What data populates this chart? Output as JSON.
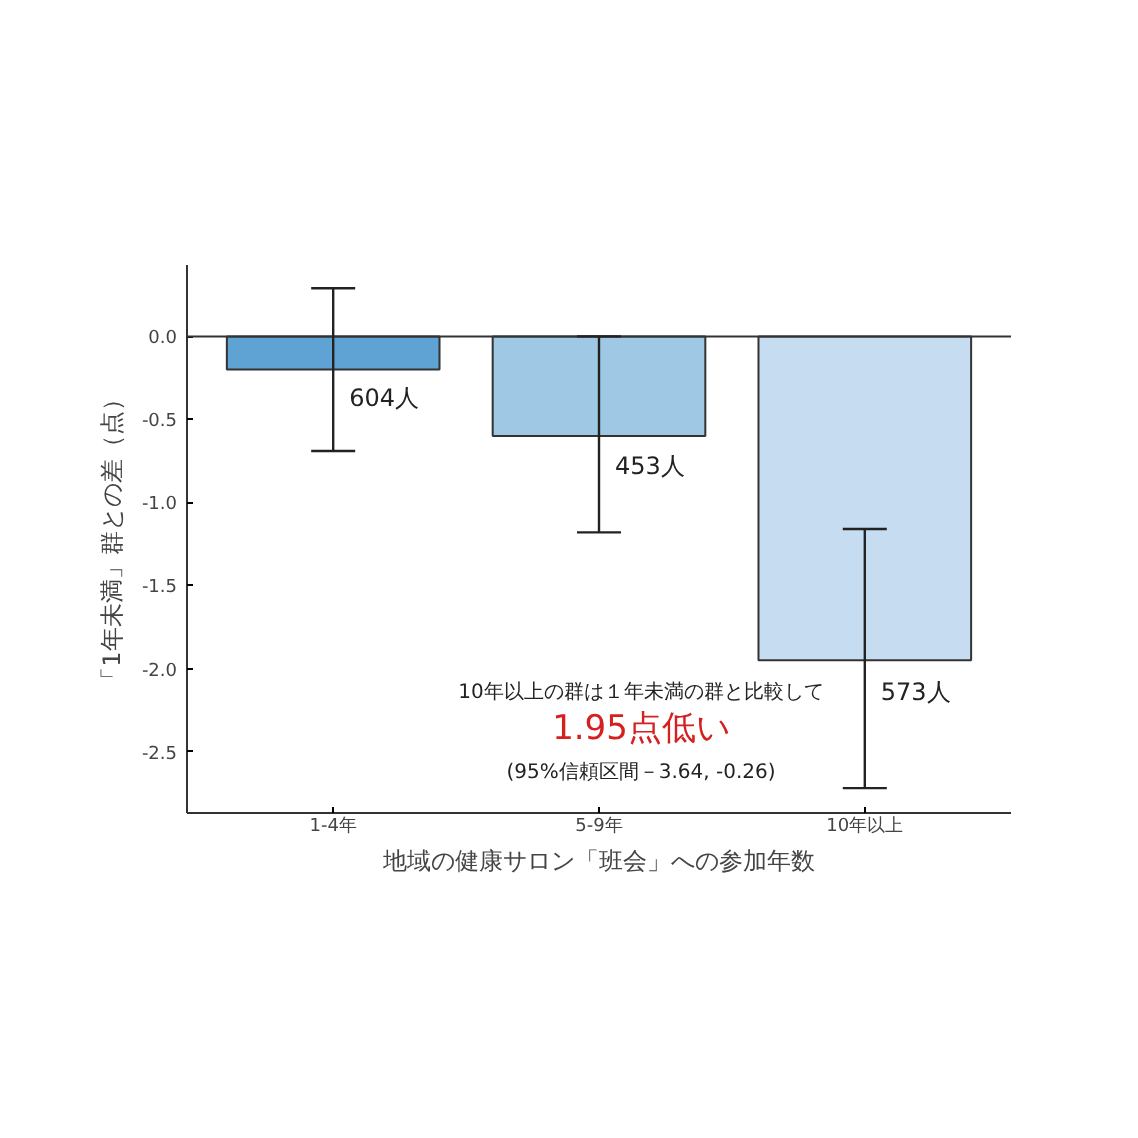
{
  "chart_data": {
    "type": "bar",
    "xlabel": "地域の健康サロン「班会」への参加年数",
    "ylabel": "「1年未満」群との差（点）",
    "categories": [
      "1-4年",
      "5-9年",
      "10年以上"
    ],
    "values": [
      -0.2,
      -0.6,
      -1.95
    ],
    "colors": [
      "#5fa2d4",
      "#9fc8e4",
      "#c6dcf0"
    ],
    "errors": [
      [
        -0.69,
        0.29
      ],
      [
        -1.18,
        0.0
      ],
      [
        -2.72,
        -1.16
      ]
    ],
    "ylim": [
      -2.87,
      0.43
    ],
    "yticks": [
      {
        "value": 0,
        "label": "0.0"
      },
      {
        "value": -0.5,
        "label": "-0.5"
      },
      {
        "value": -1,
        "label": "-1.0"
      },
      {
        "value": -1.5,
        "label": "-1.5"
      },
      {
        "value": -2,
        "label": "-2.0"
      },
      {
        "value": -2.5,
        "label": "-2.5"
      }
    ],
    "ref_lines": [
      {
        "axis": "y",
        "value": 0,
        "color": "#333333"
      }
    ],
    "grid": false,
    "annotations": [
      {
        "text": "604人",
        "x": "1-4年",
        "y": -0.37
      },
      {
        "text": "453人",
        "x": "5-9年",
        "y": -0.78
      },
      {
        "text": "573人",
        "x": "10年以上",
        "y": -2.14
      },
      "10年以上の群は１年未満の群と比較して",
      "1.95点低い",
      "(95%信頼区間－3.64, -0.26)"
    ]
  }
}
